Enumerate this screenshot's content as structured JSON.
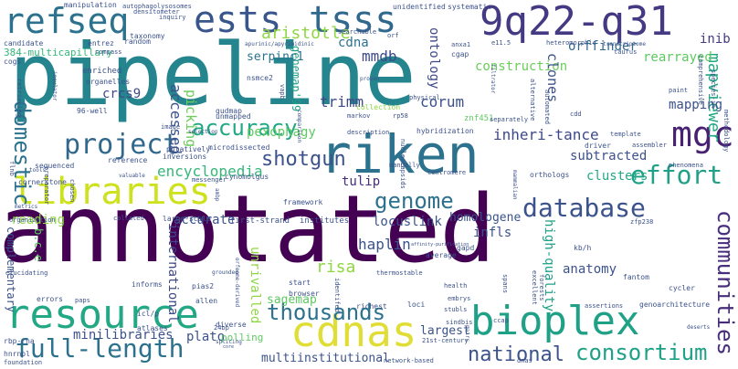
{
  "words": [
    {
      "text": "annotated",
      "color": "#440154",
      "size": 70
    },
    {
      "text": "pipeline",
      "color": "#25858e",
      "size": 64
    },
    {
      "text": "riken",
      "color": "#2c728e",
      "size": 48
    },
    {
      "text": "resource",
      "color": "#22a884",
      "size": 38
    },
    {
      "text": "libraries",
      "color": "#cde11d",
      "size": 36
    },
    {
      "text": "cdnas",
      "color": "#e1dd37",
      "size": 38
    },
    {
      "text": "bioplex",
      "color": "#1fa187",
      "size": 38
    },
    {
      "text": "refseq",
      "color": "#2c728e",
      "size": 30
    },
    {
      "text": "ests",
      "color": "#39568c",
      "size": 32
    },
    {
      "text": "tsss",
      "color": "#31688e",
      "size": 32
    },
    {
      "text": "9q22-q31",
      "color": "#443a83",
      "size": 32
    },
    {
      "text": "project",
      "color": "#31688e",
      "size": 26
    },
    {
      "text": "mgc",
      "color": "#482173",
      "size": 30
    },
    {
      "text": "accuracy",
      "color": "#22a884",
      "size": 22
    },
    {
      "text": "database",
      "color": "#3b528b",
      "size": 24
    },
    {
      "text": "effort",
      "color": "#1fa187",
      "size": 24
    },
    {
      "text": "genome",
      "color": "#2c728e",
      "size": 22
    },
    {
      "text": "full-length",
      "color": "#2c728e",
      "size": 26
    },
    {
      "text": "thousands",
      "color": "#2c728e",
      "size": 20
    },
    {
      "text": "national",
      "color": "#3b528b",
      "size": 22
    },
    {
      "text": "consortium",
      "color": "#1fa187",
      "size": 22
    },
    {
      "text": "shotgun",
      "color": "#3b528b",
      "size": 20
    },
    {
      "text": "encyclopedia",
      "color": "#35b779",
      "size": 16
    },
    {
      "text": "domestic",
      "color": "#2c728e",
      "size": 22
    },
    {
      "text": "communities",
      "color": "#472d7b",
      "size": 22
    },
    {
      "text": "mapviewer",
      "color": "#22a884",
      "size": 16
    },
    {
      "text": "inheri-tance",
      "color": "#3e4989",
      "size": 15
    },
    {
      "text": "corum",
      "color": "#3b528b",
      "size": 16
    },
    {
      "text": "trimm",
      "color": "#3e4989",
      "size": 16
    },
    {
      "text": "aristotle",
      "color": "#90d743",
      "size": 16
    },
    {
      "text": "cdna",
      "color": "#2c728e",
      "size": 14
    },
    {
      "text": "mmdb",
      "color": "#3e4989",
      "size": 16
    },
    {
      "text": "orffinder",
      "color": "#31688e",
      "size": 13
    },
    {
      "text": "rearrayed",
      "color": "#5ec962",
      "size": 13
    },
    {
      "text": "construction",
      "color": "#6ccd5a",
      "size": 13
    },
    {
      "text": "ontology",
      "color": "#3e4989",
      "size": 14
    },
    {
      "text": "genemap'99",
      "color": "#1fa187",
      "size": 12
    },
    {
      "text": "inib",
      "color": "#443a83",
      "size": 13
    },
    {
      "text": "serpinc1",
      "color": "#2c728e",
      "size": 12
    },
    {
      "text": "crcs9",
      "color": "#3e4989",
      "size": 13
    },
    {
      "text": "accessed",
      "color": "#3b528b",
      "size": 15
    },
    {
      "text": "picking",
      "color": "#6ccd5a",
      "size": 15
    },
    {
      "text": "clones",
      "color": "#3b528b",
      "size": 14
    },
    {
      "text": "mapping",
      "color": "#3b528b",
      "size": 13
    },
    {
      "text": "pexophagy",
      "color": "#5ec962",
      "size": 13
    },
    {
      "text": "tulip",
      "color": "#472d7b",
      "size": 13
    },
    {
      "text": "subtracted",
      "color": "#3b528b",
      "size": 13
    },
    {
      "text": "homologene",
      "color": "#3b528b",
      "size": 13
    },
    {
      "text": "clusters",
      "color": "#22a884",
      "size": 13
    },
    {
      "text": "locuslink",
      "color": "#3b528b",
      "size": 13
    },
    {
      "text": "infls",
      "color": "#3b528b",
      "size": 13
    },
    {
      "text": "reading",
      "color": "#90d743",
      "size": 13
    },
    {
      "text": "accurate",
      "color": "#3b528b",
      "size": 13
    },
    {
      "text": "haplin",
      "color": "#3b528b",
      "size": 14
    },
    {
      "text": "risa",
      "color": "#90d743",
      "size": 16
    },
    {
      "text": "anatomy",
      "color": "#3b528b",
      "size": 14
    },
    {
      "text": "high-quality",
      "color": "#1fa187",
      "size": 13
    },
    {
      "text": "international",
      "color": "#3e4989",
      "size": 13
    },
    {
      "text": "unrivalled",
      "color": "#90d743",
      "size": 13
    },
    {
      "text": "sagemap",
      "color": "#5ec962",
      "size": 13
    },
    {
      "text": "largest",
      "color": "#3b528b",
      "size": 12
    },
    {
      "text": "minilibraries",
      "color": "#3b528b",
      "size": 13
    },
    {
      "text": "plato",
      "color": "#3b528b",
      "size": 13
    },
    {
      "text": "multiinstitutional",
      "color": "#3b528b",
      "size": 13
    },
    {
      "text": "polling",
      "color": "#5ec962",
      "size": 11
    },
    {
      "text": "complementary",
      "color": "#3b528b",
      "size": 12
    },
    {
      "text": "b.c.e",
      "color": "#5ec962",
      "size": 12
    },
    {
      "text": "384-multicapillary",
      "color": "#35b779",
      "size": 11
    },
    {
      "text": "96-well",
      "color": "#3b528b",
      "size": 8
    },
    {
      "text": "gudmap",
      "color": "#3b528b",
      "size": 8
    },
    {
      "text": "nsmce2",
      "color": "#3b528b",
      "size": 8
    },
    {
      "text": "enriched",
      "color": "#3b528b",
      "size": 9
    },
    {
      "text": "organelles",
      "color": "#3b528b",
      "size": 8
    },
    {
      "text": "random",
      "color": "#3b528b",
      "size": 8
    },
    {
      "text": "taxonomy",
      "color": "#3b528b",
      "size": 8
    },
    {
      "text": "entrez",
      "color": "#3b528b",
      "size": 8
    },
    {
      "text": "compass",
      "color": "#3b528b",
      "size": 7
    },
    {
      "text": "candidate",
      "color": "#3b528b",
      "size": 8
    },
    {
      "text": "cogs",
      "color": "#3b528b",
      "size": 8
    },
    {
      "text": "manipulation",
      "color": "#3b528b",
      "size": 8
    },
    {
      "text": "autophagolysosomes",
      "color": "#3b528b",
      "size": 7
    },
    {
      "text": "densitometer",
      "color": "#3b528b",
      "size": 7
    },
    {
      "text": "inquiry",
      "color": "#3b528b",
      "size": 7
    },
    {
      "text": "unidentified",
      "color": "#3b528b",
      "size": 8
    },
    {
      "text": "systematic",
      "color": "#3b528b",
      "size": 8
    },
    {
      "text": "searchable",
      "color": "#3b528b",
      "size": 7
    },
    {
      "text": "orf",
      "color": "#3b528b",
      "size": 7
    },
    {
      "text": "anxa1",
      "color": "#3b528b",
      "size": 7
    },
    {
      "text": "cgap",
      "color": "#3b528b",
      "size": 8
    },
    {
      "text": "e11.5",
      "color": "#3b528b",
      "size": 7
    },
    {
      "text": "heteromorphic",
      "color": "#3b528b",
      "size": 7
    },
    {
      "text": "transcriptome",
      "color": "#3b528b",
      "size": 6
    },
    {
      "text": "taurus",
      "color": "#3b528b",
      "size": 7
    },
    {
      "text": "paint",
      "color": "#3b528b",
      "size": 7
    },
    {
      "text": "comprehensive",
      "color": "#3b528b",
      "size": 7
    },
    {
      "text": "species-in",
      "color": "#3b528b",
      "size": 7
    },
    {
      "text": "apurinic/apyrimidinic",
      "color": "#3b528b",
      "size": 6
    },
    {
      "text": "unmapped",
      "color": "#3b528b",
      "size": 8
    },
    {
      "text": "markov",
      "color": "#3b528b",
      "size": 7
    },
    {
      "text": "rp58",
      "color": "#3b528b",
      "size": 7
    },
    {
      "text": "physical",
      "color": "#3b528b",
      "size": 7
    },
    {
      "text": "collection",
      "color": "#90d743",
      "size": 8
    },
    {
      "text": "znf451",
      "color": "#5ec962",
      "size": 9
    },
    {
      "text": "description",
      "color": "#3b528b",
      "size": 7
    },
    {
      "text": "hybridization",
      "color": "#3b528b",
      "size": 8
    },
    {
      "text": "separately",
      "color": "#3b528b",
      "size": 7
    },
    {
      "text": "cdd",
      "color": "#3b528b",
      "size": 7
    },
    {
      "text": "automated",
      "color": "#3b528b",
      "size": 7
    },
    {
      "text": "alternative",
      "color": "#3b528b",
      "size": 7
    },
    {
      "text": "filtrator",
      "color": "#3b528b",
      "size": 6
    },
    {
      "text": "comparison",
      "color": "#3b528b",
      "size": 6
    },
    {
      "text": "retrieving",
      "color": "#3b528b",
      "size": 7
    },
    {
      "text": "insulator",
      "color": "#3b528b",
      "size": 6
    },
    {
      "text": "preparator",
      "color": "#3b528b",
      "size": 7
    },
    {
      "text": "image",
      "color": "#3b528b",
      "size": 7
    },
    {
      "text": "putatively",
      "color": "#3b528b",
      "size": 8
    },
    {
      "text": "inversions",
      "color": "#3b528b",
      "size": 8
    },
    {
      "text": "microdissected",
      "color": "#3b528b",
      "size": 8
    },
    {
      "text": "cynomolgus",
      "color": "#3b528b",
      "size": 8
    },
    {
      "text": "messenger",
      "color": "#3b528b",
      "size": 7
    },
    {
      "text": "reference",
      "color": "#3b528b",
      "size": 8
    },
    {
      "text": "sequenced",
      "color": "#3b528b",
      "size": 8
    },
    {
      "text": "flnb",
      "color": "#3b528b",
      "size": 7
    },
    {
      "text": "tools",
      "color": "#3b528b",
      "size": 6
    },
    {
      "text": "cornerstone",
      "color": "#3b528b",
      "size": 8
    },
    {
      "text": "chosen",
      "color": "#3b528b",
      "size": 7
    },
    {
      "text": "valuable",
      "color": "#3b528b",
      "size": 6
    },
    {
      "text": "organization",
      "color": "#3b528b",
      "size": 7
    },
    {
      "text": "metrics",
      "color": "#3b528b",
      "size": 6
    },
    {
      "text": "collated",
      "color": "#3b528b",
      "size": 7
    },
    {
      "text": "large-scale",
      "color": "#3b528b",
      "size": 8
    },
    {
      "text": "first-strand",
      "color": "#3b528b",
      "size": 9
    },
    {
      "text": "institutes",
      "color": "#3b528b",
      "size": 9
    },
    {
      "text": "framework",
      "color": "#3b528b",
      "size": 8
    },
    {
      "text": "manually",
      "color": "#3b528b",
      "size": 7
    },
    {
      "text": "centromere",
      "color": "#3b528b",
      "size": 7
    },
    {
      "text": "orthologs",
      "color": "#3b528b",
      "size": 8
    },
    {
      "text": "driver",
      "color": "#3b528b",
      "size": 8
    },
    {
      "text": "template",
      "color": "#3b528b",
      "size": 7
    },
    {
      "text": "assembler",
      "color": "#3b528b",
      "size": 7
    },
    {
      "text": "phenomena",
      "color": "#3b528b",
      "size": 7
    },
    {
      "text": "methodology",
      "color": "#3b528b",
      "size": 7
    },
    {
      "text": "mammalian",
      "color": "#3b528b",
      "size": 6
    },
    {
      "text": "nucleocapsids",
      "color": "#3b528b",
      "size": 7
    },
    {
      "text": "zfp238",
      "color": "#3b528b",
      "size": 7
    },
    {
      "text": "affinity-purification",
      "color": "#3b528b",
      "size": 5
    },
    {
      "text": "ambp",
      "color": "#3b528b",
      "size": 6
    },
    {
      "text": "elucidating",
      "color": "#3b528b",
      "size": 7
    },
    {
      "text": "grounded",
      "color": "#3b528b",
      "size": 6
    },
    {
      "text": "errors",
      "color": "#3b528b",
      "size": 8
    },
    {
      "text": "informs",
      "color": "#3b528b",
      "size": 8
    },
    {
      "text": "pias2",
      "color": "#3b528b",
      "size": 8
    },
    {
      "text": "start",
      "color": "#3b528b",
      "size": 8
    },
    {
      "text": "browser",
      "color": "#3b528b",
      "size": 8
    },
    {
      "text": "identifed",
      "color": "#3b528b",
      "size": 7
    },
    {
      "text": "average",
      "color": "#3b528b",
      "size": 8
    },
    {
      "text": "gapd",
      "color": "#3b528b",
      "size": 8
    },
    {
      "text": "kb/h",
      "color": "#3b528b",
      "size": 8
    },
    {
      "text": "health",
      "color": "#3b528b",
      "size": 7
    },
    {
      "text": "embrys",
      "color": "#3b528b",
      "size": 7
    },
    {
      "text": "fantom",
      "color": "#3b528b",
      "size": 8
    },
    {
      "text": "cycler",
      "color": "#3b528b",
      "size": 8
    },
    {
      "text": "forests",
      "color": "#3b528b",
      "size": 7
    },
    {
      "text": "excellent",
      "color": "#3b528b",
      "size": 7
    },
    {
      "text": "spans",
      "color": "#3b528b",
      "size": 7
    },
    {
      "text": "thermostable",
      "color": "#3b528b",
      "size": 7
    },
    {
      "text": "richest",
      "color": "#3b528b",
      "size": 8
    },
    {
      "text": "loci",
      "color": "#3b528b",
      "size": 8
    },
    {
      "text": "stubls",
      "color": "#3b528b",
      "size": 7
    },
    {
      "text": "paps",
      "color": "#3b528b",
      "size": 7
    },
    {
      "text": "allen",
      "color": "#3b528b",
      "size": 8
    },
    {
      "text": "icl/p",
      "color": "#3b528b",
      "size": 8
    },
    {
      "text": "atlases",
      "color": "#3b528b",
      "size": 8
    },
    {
      "text": "diverse",
      "color": "#3b528b",
      "size": 8
    },
    {
      "text": "orfeome-derived",
      "color": "#3b528b",
      "size": 6
    },
    {
      "text": "ccap",
      "color": "#3b528b",
      "size": 7
    },
    {
      "text": "assertions",
      "color": "#3b528b",
      "size": 7
    },
    {
      "text": "genoarchitecture",
      "color": "#3b528b",
      "size": 8
    },
    {
      "text": "deserts",
      "color": "#3b528b",
      "size": 6
    },
    {
      "text": "sindbis",
      "color": "#3b528b",
      "size": 7
    },
    {
      "text": "pairs",
      "color": "#3b528b",
      "size": 6
    },
    {
      "text": "21st-century",
      "color": "#3b528b",
      "size": 7
    },
    {
      "text": "24bp",
      "color": "#3b528b",
      "size": 7
    },
    {
      "text": "splicing",
      "color": "#3b528b",
      "size": 6
    },
    {
      "text": "rbp-rna",
      "color": "#3b528b",
      "size": 8
    },
    {
      "text": "hnrnpl",
      "color": "#3b528b",
      "size": 8
    },
    {
      "text": "foundation",
      "color": "#3b528b",
      "size": 7
    },
    {
      "text": "core",
      "color": "#3b528b",
      "size": 5
    },
    {
      "text": "network-based",
      "color": "#3b528b",
      "size": 7
    },
    {
      "text": "dnas",
      "color": "#3b528b",
      "size": 7
    },
    {
      "text": "tegt",
      "color": "#3b528b",
      "size": 6
    },
    {
      "text": "vapb",
      "color": "#3b528b",
      "size": 7
    },
    {
      "text": "proven",
      "color": "#3b528b",
      "size": 6
    },
    {
      "text": "selection",
      "color": "#3b528b",
      "size": 6
    }
  ]
}
